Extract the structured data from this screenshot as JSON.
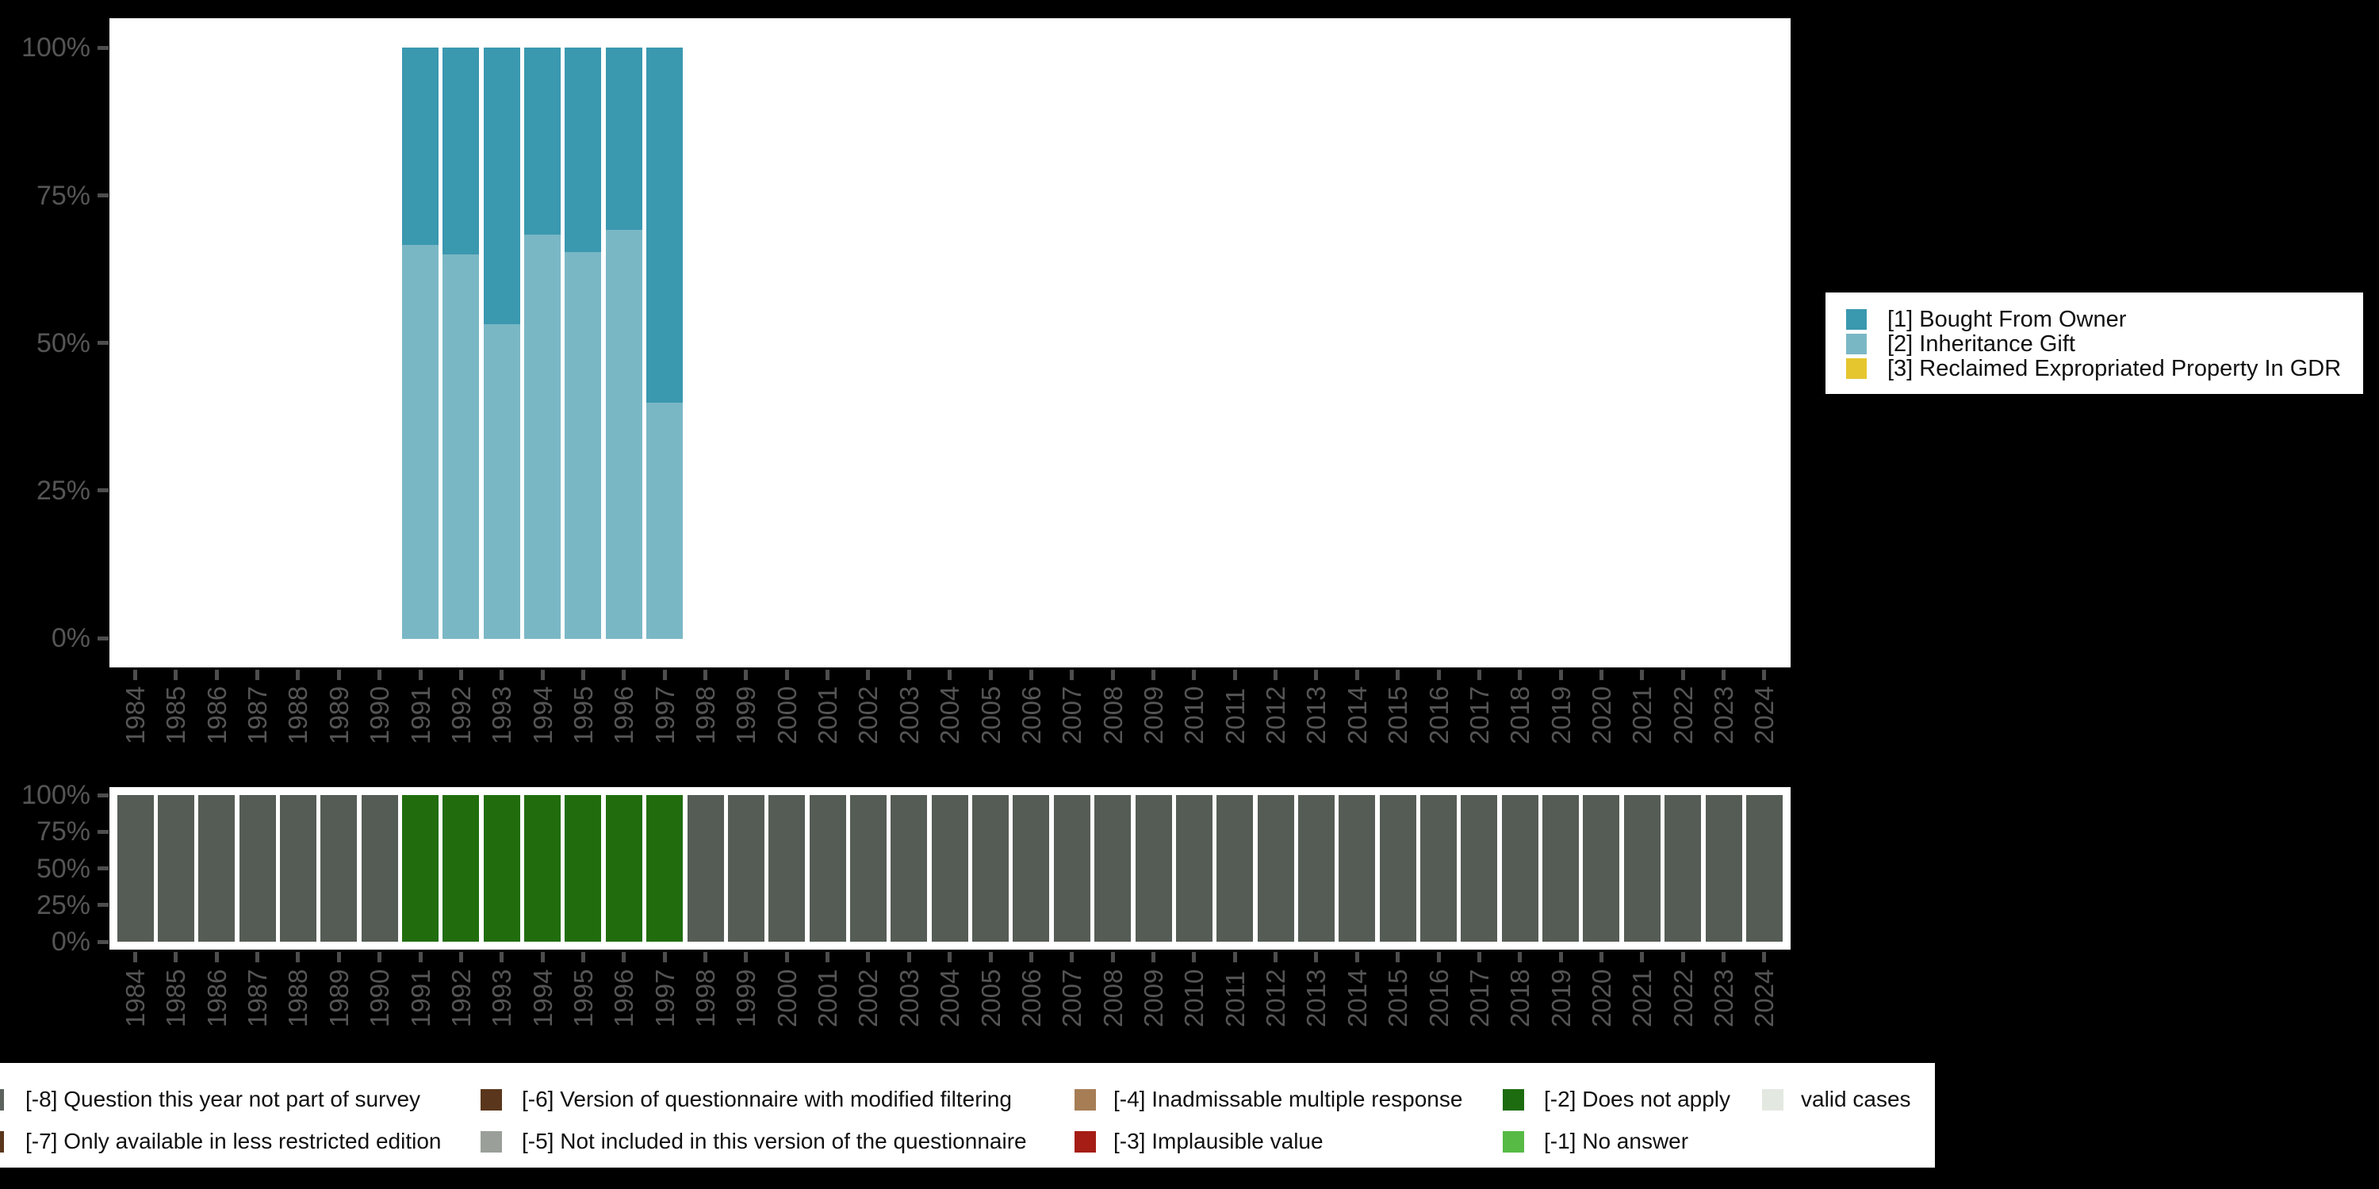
{
  "colors": {
    "background": "#000000",
    "panel": "#ffffff",
    "axis_text": "#555555",
    "axis_tick": "#4d4d4d",
    "legend_text": "#111111"
  },
  "axis_years": [
    "1984",
    "1985",
    "1986",
    "1987",
    "1988",
    "1989",
    "1990",
    "1991",
    "1992",
    "1993",
    "1994",
    "1995",
    "1996",
    "1997",
    "1998",
    "1999",
    "2000",
    "2001",
    "2002",
    "2003",
    "2004",
    "2005",
    "2006",
    "2007",
    "2008",
    "2009",
    "2010",
    "2011",
    "2012",
    "2013",
    "2014",
    "2015",
    "2016",
    "2017",
    "2018",
    "2019",
    "2020",
    "2021",
    "2022",
    "2023",
    "2024"
  ],
  "chart_data": [
    {
      "id": "ownership-stacked-bars",
      "type": "bar",
      "stacked": true,
      "title": "",
      "xlabel": "",
      "ylabel": "",
      "ylim": [
        0,
        100
      ],
      "y_ticks": [
        "100%",
        "75%",
        "50%",
        "25%",
        "0%"
      ],
      "grid": false,
      "legend_position": "right",
      "categories": [
        "1991",
        "1992",
        "1993",
        "1994",
        "1995",
        "1996",
        "1997"
      ],
      "series": [
        {
          "name": "[1] Bought From Owner",
          "color": "#3a98af",
          "values": [
            33.4,
            35.0,
            46.8,
            31.6,
            34.6,
            30.8,
            60.1
          ]
        },
        {
          "name": "[2] Inheritance Gift",
          "color": "#7ab7c5",
          "values": [
            66.6,
            65.0,
            53.2,
            68.4,
            65.4,
            69.2,
            39.9
          ]
        },
        {
          "name": "[3] Reclaimed Expropriated Property In GDR",
          "color": "#e6c62f",
          "values": [
            0,
            0,
            0,
            0,
            0,
            0,
            0
          ]
        }
      ]
    },
    {
      "id": "missing-codes-bars",
      "type": "bar",
      "stacked": false,
      "title": "",
      "xlabel": "",
      "ylabel": "",
      "ylim": [
        0,
        100
      ],
      "y_ticks": [
        "100%",
        "75%",
        "50%",
        "25%",
        "0%"
      ],
      "grid": false,
      "year_groups": [
        {
          "from": "1984",
          "to": "1990",
          "label": "[-8] Question this year not part of survey",
          "color": "#555c55",
          "percent": 100
        },
        {
          "from": "1991",
          "to": "1997",
          "label": "[-2] Does not apply",
          "color": "#216d0e",
          "percent": 100
        },
        {
          "from": "1998",
          "to": "2024",
          "label": "[-8] Question this year not part of survey",
          "color": "#555c55",
          "percent": 100
        }
      ]
    }
  ],
  "top_legend": {
    "entries": [
      {
        "label": "[1] Bought From Owner",
        "color": "#3a98af"
      },
      {
        "label": "[2] Inheritance Gift",
        "color": "#7ab7c5"
      },
      {
        "label": "[3] Reclaimed Expropriated Property In GDR",
        "color": "#e6c62f"
      }
    ]
  },
  "bottom_legend": {
    "rows": [
      [
        {
          "label": "[-8] Question this year not part of survey",
          "color": "#5c625c"
        },
        {
          "label": "[-6] Version of questionnaire with modified filtering",
          "color": "#5a371c"
        },
        {
          "label": "[-4] Inadmissable multiple response",
          "color": "#a67d55"
        },
        {
          "label": "[-2] Does not apply",
          "color": "#1d6c10"
        },
        {
          "label": "valid cases",
          "color": "#e3e8e1"
        }
      ],
      [
        {
          "label": "[-7] Only available in less restricted edition",
          "color": "#5a371c"
        },
        {
          "label": "[-5] Not included in this version of the questionnaire",
          "color": "#9aa099"
        },
        {
          "label": "[-3] Implausible value",
          "color": "#a51d15"
        },
        {
          "label": "[-1] No answer",
          "color": "#56ba45"
        }
      ]
    ]
  }
}
